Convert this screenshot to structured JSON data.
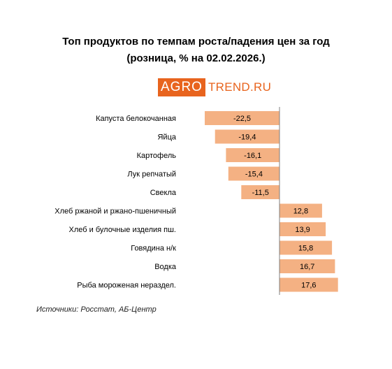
{
  "header": {
    "title_line1": "Топ продуктов по темпам роста/падения цен за год",
    "title_line2": "(розница, % на 02.02.2026.)"
  },
  "logo": {
    "part1": "AGRO",
    "part2": "TREND.RU",
    "accent_color": "#e8641e"
  },
  "footer": {
    "source": "Источники: Росстат, АБ-Центр"
  },
  "chart_data": {
    "type": "bar",
    "orientation": "horizontal",
    "bar_color": "#f4b183",
    "categories": [
      "Капуста белокочанная",
      "Яйца",
      "Картофель",
      "Лук репчатый",
      "Свекла",
      "Хлеб ржаной и ржано-пшеничный",
      "Хлеб и булочные изделия пш.",
      "Говядина н/к",
      "Водка",
      "Рыба мороженая нераздел."
    ],
    "values": [
      -22.5,
      -19.4,
      -16.1,
      -15.4,
      -11.5,
      12.8,
      13.9,
      15.8,
      16.7,
      17.6
    ],
    "labels": [
      "-22,5",
      "-19,4",
      "-16,1",
      "-15,4",
      "-11,5",
      "12,8",
      "13,9",
      "15,8",
      "16,7",
      "17,6"
    ],
    "xlim": [
      -22.5,
      17.6
    ],
    "grid": false,
    "legend": "none"
  }
}
